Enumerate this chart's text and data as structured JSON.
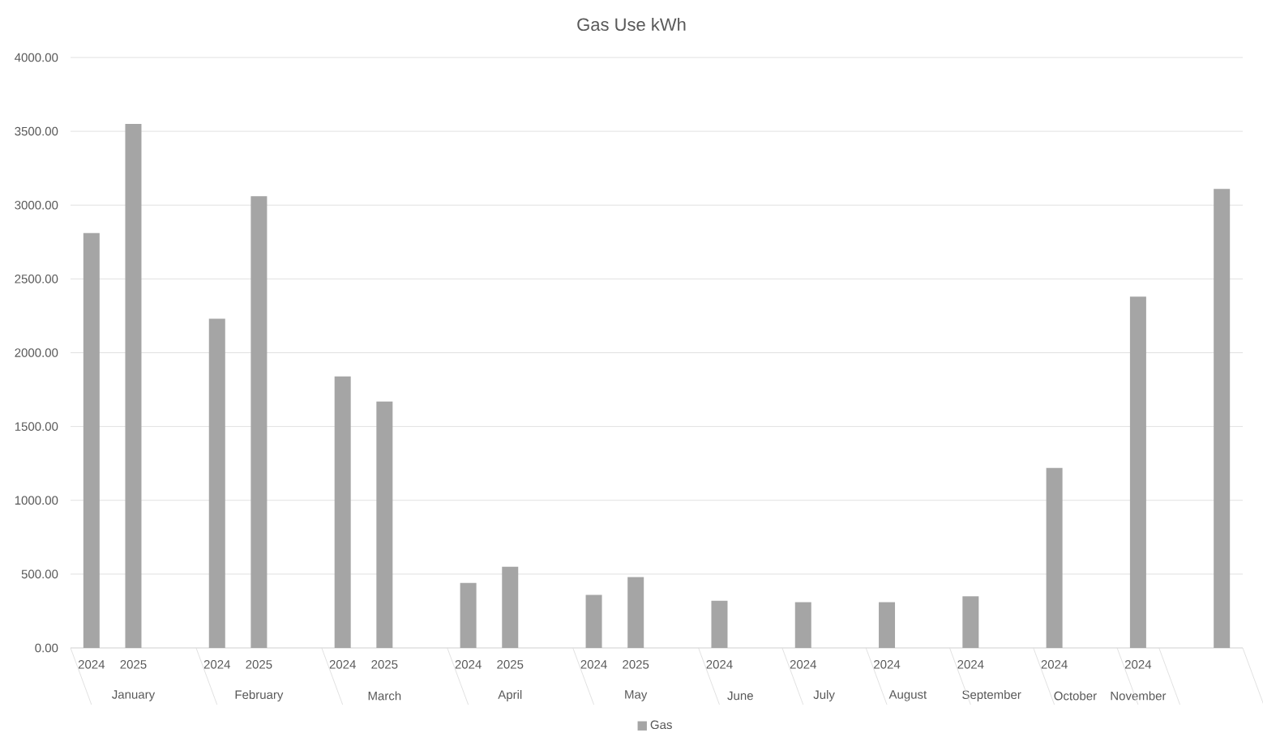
{
  "chart_data": {
    "type": "bar",
    "title": "Gas Use kWh",
    "categories": [
      "2024",
      "2025",
      null,
      "2024",
      "2025",
      null,
      "2024",
      "2025",
      null,
      "2024",
      "2025",
      null,
      "2024",
      "2025",
      null,
      "2024",
      null,
      "2024",
      null,
      "2024",
      null,
      "2024",
      null,
      "2024",
      null,
      "2024",
      null,
      null
    ],
    "series": [
      {
        "name": "Gas",
        "color": "#a5a5a5",
        "values": [
          2810,
          3550,
          null,
          2230,
          3060,
          null,
          1840,
          1670,
          null,
          440,
          550,
          null,
          360,
          480,
          null,
          320,
          null,
          310,
          null,
          310,
          null,
          350,
          null,
          1220,
          null,
          2380,
          null,
          3110
        ]
      }
    ],
    "annotations": [
      "January",
      "February",
      "March",
      "April",
      "May",
      "June",
      "July",
      "August",
      "September",
      "October",
      "November"
    ],
    "ylim": [
      0,
      4000
    ],
    "yticks": [
      {
        "value": 0,
        "label": "0.00"
      },
      {
        "value": 500,
        "label": "500.00"
      },
      {
        "value": 1000,
        "label": "1000.00"
      },
      {
        "value": 1500,
        "label": "1500.00"
      },
      {
        "value": 2000,
        "label": "2000.00"
      },
      {
        "value": 2500,
        "label": "2500.00"
      },
      {
        "value": 3000,
        "label": "3000.00"
      },
      {
        "value": 3500,
        "label": "3500.00"
      },
      {
        "value": 4000,
        "label": "4000.00"
      }
    ],
    "grid": "y",
    "legend": "bottom"
  }
}
